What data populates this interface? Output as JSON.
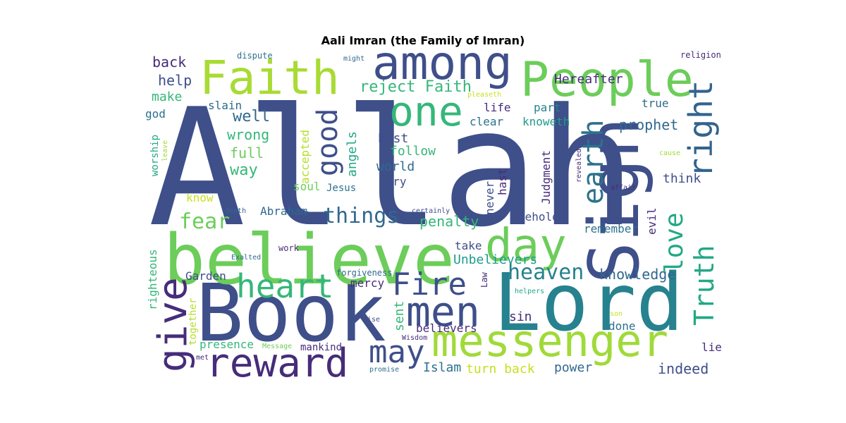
{
  "title": "Aali Imran (the Family of Imran)",
  "words": [
    {
      "text": "Allah",
      "color": "#3e4f8a"
    },
    {
      "text": "Book",
      "color": "#3e4f8a"
    },
    {
      "text": "Lord",
      "color": "#26828e"
    },
    {
      "text": "believe",
      "color": "#6ccd5a"
    },
    {
      "text": "Sign",
      "color": "#3e4f8a"
    },
    {
      "text": "messenger",
      "color": "#a0da39"
    },
    {
      "text": "People",
      "color": "#6ccd5a"
    },
    {
      "text": "Faith",
      "color": "#a8db34"
    },
    {
      "text": "among",
      "color": "#3e4f8a"
    },
    {
      "text": "reward",
      "color": "#472c7a"
    },
    {
      "text": "one",
      "color": "#35b779"
    },
    {
      "text": "day",
      "color": "#6ccd5a"
    },
    {
      "text": "give",
      "color": "#472c7a"
    },
    {
      "text": "heart",
      "color": "#35b779"
    },
    {
      "text": "men",
      "color": "#3e4f8a"
    },
    {
      "text": "Fire",
      "color": "#3e4f8a"
    },
    {
      "text": "may",
      "color": "#3e4f8a"
    },
    {
      "text": "Truth",
      "color": "#22a884"
    },
    {
      "text": "right",
      "color": "#33638d"
    },
    {
      "text": "earth",
      "color": "#2c728e"
    },
    {
      "text": "good",
      "color": "#3e4f8a"
    },
    {
      "text": "love",
      "color": "#22a884"
    },
    {
      "text": "things",
      "color": "#31688e"
    },
    {
      "text": "fear",
      "color": "#6ccd5a"
    },
    {
      "text": "heaven",
      "color": "#26828e"
    },
    {
      "text": "reject Faith",
      "color": "#35b779"
    },
    {
      "text": "well",
      "color": "#31688e"
    },
    {
      "text": "wrong",
      "color": "#35b779"
    },
    {
      "text": "full",
      "color": "#6ccd5a"
    },
    {
      "text": "way",
      "color": "#35b779"
    },
    {
      "text": "back",
      "color": "#472c7a"
    },
    {
      "text": "help",
      "color": "#3e4f8a"
    },
    {
      "text": "make",
      "color": "#35b779"
    },
    {
      "text": "god",
      "color": "#2c728e"
    },
    {
      "text": "slain",
      "color": "#31688e"
    },
    {
      "text": "Hereafter",
      "color": "#472c7a"
    },
    {
      "text": "life",
      "color": "#472c7a"
    },
    {
      "text": "clear",
      "color": "#2c728e"
    },
    {
      "text": "part",
      "color": "#26828e"
    },
    {
      "text": "true",
      "color": "#31688e"
    },
    {
      "text": "knoweth",
      "color": "#1f9a8a"
    },
    {
      "text": "prophet",
      "color": "#31688e"
    },
    {
      "text": "best",
      "color": "#3e4f8a"
    },
    {
      "text": "follow",
      "color": "#35b779"
    },
    {
      "text": "world",
      "color": "#31688e"
    },
    {
      "text": "Mary",
      "color": "#3e4f8a"
    },
    {
      "text": "soul",
      "color": "#6ccd5a"
    },
    {
      "text": "Jesus",
      "color": "#2c728e"
    },
    {
      "text": "angels",
      "color": "#22a884"
    },
    {
      "text": "accepted",
      "color": "#b5de2b"
    },
    {
      "text": "never",
      "color": "#3e4f8a"
    },
    {
      "text": "hast",
      "color": "#472c7a"
    },
    {
      "text": "Judgment",
      "color": "#472c7a"
    },
    {
      "text": "think",
      "color": "#3e4f8a"
    },
    {
      "text": "evil",
      "color": "#472c7a"
    },
    {
      "text": "know",
      "color": "#c8e020"
    },
    {
      "text": "Abraham",
      "color": "#31688e"
    },
    {
      "text": "penalty",
      "color": "#35b779"
    },
    {
      "text": "Behold",
      "color": "#3e4f8a"
    },
    {
      "text": "remember",
      "color": "#2c728e"
    },
    {
      "text": "take",
      "color": "#3e4f8a"
    },
    {
      "text": "Unbelievers",
      "color": "#1f9a8a"
    },
    {
      "text": "knowledge",
      "color": "#31688e"
    },
    {
      "text": "Garden",
      "color": "#3e4f8a"
    },
    {
      "text": "mercy",
      "color": "#472c7a"
    },
    {
      "text": "sent",
      "color": "#35b779"
    },
    {
      "text": "believers",
      "color": "#472c7a"
    },
    {
      "text": "sin",
      "color": "#472c7a"
    },
    {
      "text": "done",
      "color": "#2c728e"
    },
    {
      "text": "presence",
      "color": "#35b779"
    },
    {
      "text": "mankind",
      "color": "#472c7a"
    },
    {
      "text": "Islam",
      "color": "#2c728e"
    },
    {
      "text": "turn back",
      "color": "#c8e020"
    },
    {
      "text": "power",
      "color": "#31688e"
    },
    {
      "text": "indeed",
      "color": "#3e4f8a"
    },
    {
      "text": "lie",
      "color": "#472c7a"
    },
    {
      "text": "righteous",
      "color": "#35b779"
    },
    {
      "text": "together",
      "color": "#b5de2b"
    },
    {
      "text": "worship",
      "color": "#22a884"
    },
    {
      "text": "leave",
      "color": "#a0da39"
    },
    {
      "text": "dispute",
      "color": "#2c728e"
    },
    {
      "text": "might",
      "color": "#31688e"
    },
    {
      "text": "pleaseth",
      "color": "#c8e020"
    },
    {
      "text": "religion",
      "color": "#472c7a"
    },
    {
      "text": "death",
      "color": "#31688e"
    },
    {
      "text": "certainly",
      "color": "#3e4f8a"
    },
    {
      "text": "revealed",
      "color": "#472c7a"
    },
    {
      "text": "affair",
      "color": "#472c7a"
    },
    {
      "text": "cause",
      "color": "#a0da39"
    },
    {
      "text": "work",
      "color": "#472c7a"
    },
    {
      "text": "Exalted",
      "color": "#31688e"
    },
    {
      "text": "forgiveness",
      "color": "#31688e"
    },
    {
      "text": "Law",
      "color": "#472c7a"
    },
    {
      "text": "helpers",
      "color": "#22a884"
    },
    {
      "text": "son",
      "color": "#c8e020"
    },
    {
      "text": "Wise",
      "color": "#3e4f8a"
    },
    {
      "text": "Wisdom",
      "color": "#472c7a"
    },
    {
      "text": "Message",
      "color": "#6ccd5a"
    },
    {
      "text": "met",
      "color": "#472c7a"
    },
    {
      "text": "promise",
      "color": "#2c728e"
    }
  ]
}
